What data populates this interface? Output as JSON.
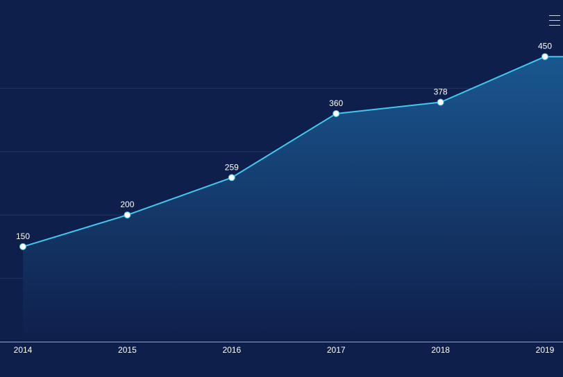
{
  "colors": {
    "background": "#0f1f4b",
    "line": "#45c8f0",
    "area_top": "#1a5a93",
    "area_bottom": "#0f1f4b",
    "grid": "#24355f",
    "axis": "#9aa6c0",
    "text": "#ffffff"
  },
  "toolbar": {
    "menu_icon": "hamburger-menu-icon"
  },
  "chart_data": {
    "type": "area",
    "categories": [
      "2014",
      "2015",
      "2016",
      "2017",
      "2018",
      "2019"
    ],
    "values": [
      150,
      200,
      259,
      360,
      378,
      450
    ],
    "data_labels": [
      "150",
      "200",
      "259",
      "360",
      "378",
      "450"
    ],
    "ylim": [
      0,
      500
    ],
    "grid": true,
    "y_tick_labels_shown": false
  }
}
